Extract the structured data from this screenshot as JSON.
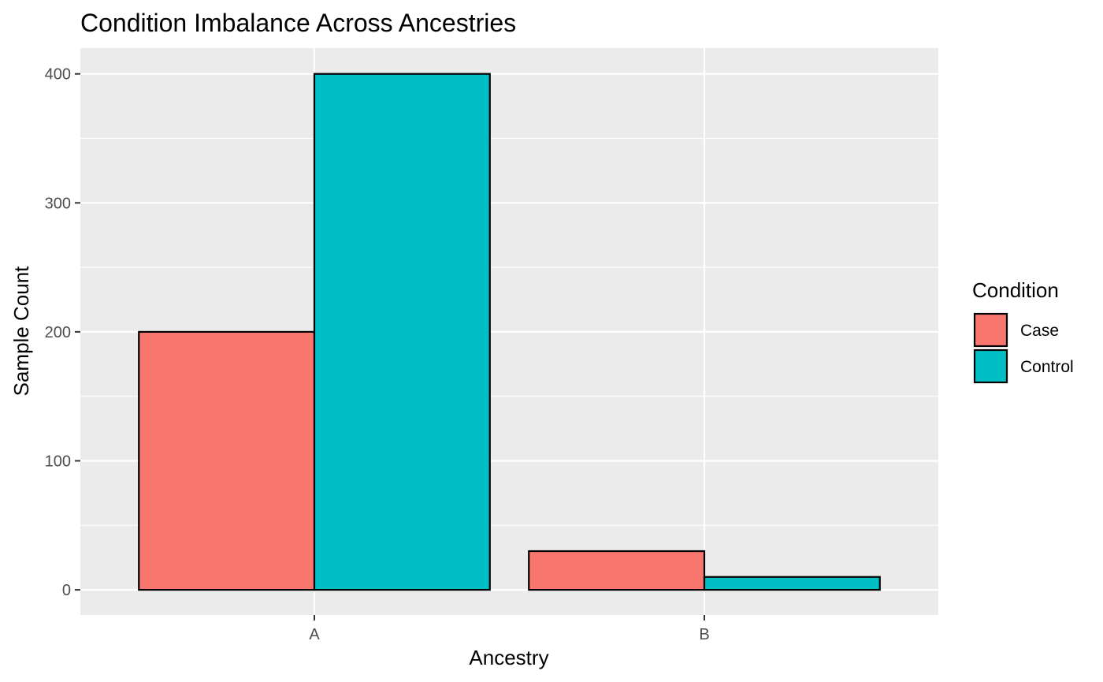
{
  "chart_data": {
    "type": "bar",
    "title": "Condition Imbalance Across Ancestries",
    "xlabel": "Ancestry",
    "ylabel": "Sample Count",
    "categories": [
      "A",
      "B"
    ],
    "series": [
      {
        "name": "Case",
        "values": [
          200,
          30
        ],
        "color": "#F8766D"
      },
      {
        "name": "Control",
        "values": [
          400,
          10
        ],
        "color": "#00BFC4"
      }
    ],
    "ylim": [
      -19.5,
      420
    ],
    "yticks": [
      0,
      100,
      200,
      300,
      400
    ],
    "legend": {
      "title": "Condition",
      "position": "right"
    },
    "grid": true,
    "panel_background": "#EBEBEB",
    "bar_outline": "#000000"
  }
}
